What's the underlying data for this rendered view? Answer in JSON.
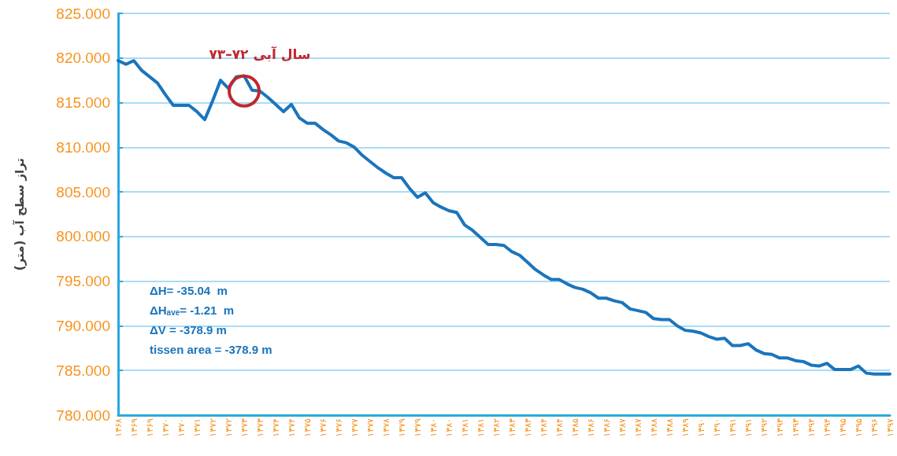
{
  "chart_data": {
    "type": "line",
    "ylabel": "تراز سطح آب (متر)",
    "categories": [
      "۱۳۶۸",
      null,
      "۱۳۶۹",
      null,
      "۱۳۶۹",
      null,
      "۱۳۷۰",
      null,
      "۱۳۷۰",
      null,
      "۱۳۷۱",
      null,
      "۱۳۷۲",
      null,
      "۱۳۷۲",
      null,
      "۱۳۷۳",
      null,
      "۱۳۷۳",
      null,
      "۱۳۷۴",
      null,
      "۱۳۷۴",
      null,
      "۱۳۷۵",
      null,
      "۱۳۷۶",
      null,
      "۱۳۷۶",
      null,
      "۱۳۷۷",
      null,
      "۱۳۷۷",
      null,
      "۱۳۷۸",
      null,
      "۱۳۷۹",
      null,
      "۱۳۷۹",
      null,
      "۱۳۸۰",
      null,
      "۱۳۸۰",
      null,
      "۱۳۸۱",
      null,
      "۱۳۸۱",
      null,
      "۱۳۸۲",
      null,
      "۱۳۸۳",
      null,
      "۱۳۸۳",
      null,
      "۱۳۸۴",
      null,
      "۱۳۸۴",
      null,
      "۱۳۸۵",
      null,
      "۱۳۸۶",
      null,
      "۱۳۸۶",
      null,
      "۱۳۸۷",
      null,
      "۱۳۸۷",
      null,
      "۱۳۸۸",
      null,
      "۱۳۸۸",
      null,
      "۱۳۸۹",
      null,
      "۱۳۹۰",
      null,
      "۱۳۹۰",
      null,
      "۱۳۹۱",
      null,
      "۱۳۹۱",
      null,
      "۱۳۹۲",
      null,
      "۱۳۹۳",
      null,
      "۱۳۹۳",
      null,
      "۱۳۹۴",
      null,
      "۱۳۹۴",
      null,
      "۱۳۹۵",
      null,
      "۱۳۹۵",
      null,
      "۱۳۹۶",
      null,
      "۱۳۹۷"
    ],
    "series": [
      {
        "color": "#1b75bc",
        "values": [
          819.7,
          819.3,
          819.7,
          818.6,
          817.9,
          817.2,
          815.9,
          814.7,
          814.7,
          814.7,
          814.0,
          813.1,
          815.2,
          817.5,
          816.6,
          817.9,
          818.0,
          816.4,
          816.3,
          815.6,
          814.8,
          814.0,
          814.8,
          813.3,
          812.7,
          812.7,
          812.0,
          811.4,
          810.7,
          810.5,
          810.0,
          809.1,
          808.4,
          807.7,
          807.1,
          806.6,
          806.6,
          805.4,
          804.4,
          804.9,
          803.8,
          803.3,
          802.9,
          802.7,
          801.3,
          800.7,
          799.9,
          799.1,
          799.1,
          799.0,
          798.3,
          797.9,
          797.1,
          796.3,
          795.7,
          795.2,
          795.2,
          794.7,
          794.3,
          794.1,
          793.7,
          793.1,
          793.1,
          792.8,
          792.6,
          791.9,
          791.7,
          791.5,
          790.8,
          790.7,
          790.7,
          790.0,
          789.5,
          789.4,
          789.2,
          788.8,
          788.5,
          788.6,
          787.8,
          787.8,
          788.0,
          787.3,
          786.9,
          786.8,
          786.4,
          786.4,
          786.1,
          786.0,
          785.6,
          785.5,
          785.8,
          785.1,
          785.1,
          785.1,
          785.5,
          784.7,
          784.6,
          784.6,
          784.6
        ]
      }
    ],
    "ylim": [
      780,
      825
    ],
    "yticks": [
      {
        "value": 780,
        "label": "780.000"
      },
      {
        "value": 785,
        "label": "785.000"
      },
      {
        "value": 790,
        "label": "790.000"
      },
      {
        "value": 795,
        "label": "795.000"
      },
      {
        "value": 800,
        "label": "800.000"
      },
      {
        "value": 805,
        "label": "805.000"
      },
      {
        "value": 810,
        "label": "810.000"
      },
      {
        "value": 815,
        "label": "815.000"
      },
      {
        "value": 820,
        "label": "820.000"
      },
      {
        "value": 825,
        "label": "825.000"
      }
    ],
    "grid": "y",
    "marker": "none",
    "line_style": "solid",
    "annotations": [
      {
        "text": "سال آبی ۷۲–۷۳",
        "x": "۱۳۷۳",
        "y": 816.3
      },
      "ΔH= -35.04  m",
      "ΔH$_{ave}$= -1.21  m",
      "ΔV = -378.9 m",
      "tissen area = -378.9 m"
    ]
  }
}
